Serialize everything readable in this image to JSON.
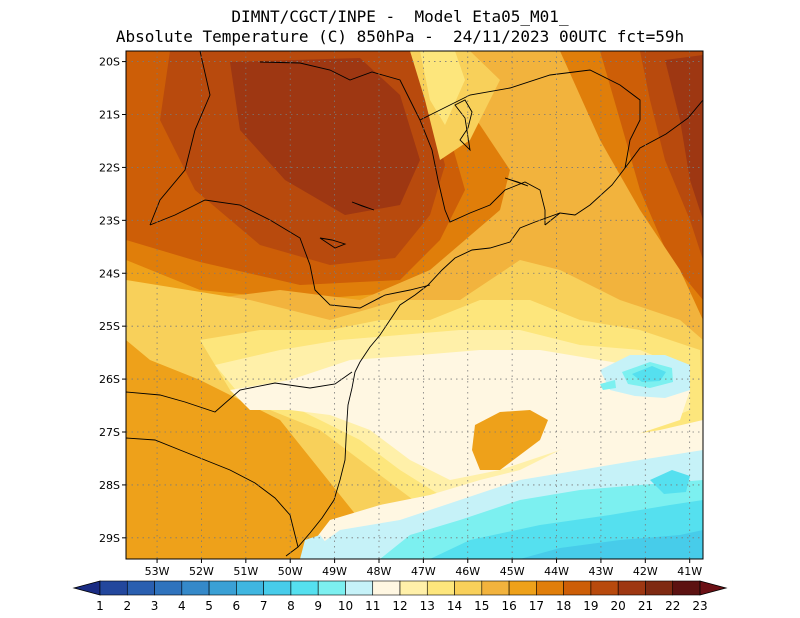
{
  "title": {
    "line1": "DIMNT/CGCT/INPE -  Model Eta05_M01_",
    "line2": "Absolute Temperature (C) 850hPa -  24/11/2023 00UTC fct=59h"
  },
  "map": {
    "variable": "Absolute Temperature",
    "units": "C",
    "level": "850hPa",
    "lon_range": [
      -53.7,
      -40.7
    ],
    "lat_range": [
      -29.4,
      -19.8
    ],
    "lat_labels": [
      "20S",
      "21S",
      "22S",
      "23S",
      "24S",
      "25S",
      "26S",
      "27S",
      "28S",
      "29S"
    ],
    "lon_labels": [
      "53W",
      "52W",
      "51W",
      "50W",
      "49W",
      "48W",
      "47W",
      "46W",
      "45W",
      "44W",
      "43W",
      "42W",
      "41W"
    ]
  },
  "colorbar": {
    "labels": [
      "1",
      "2",
      "3",
      "4",
      "5",
      "6",
      "7",
      "8",
      "9",
      "10",
      "11",
      "12",
      "13",
      "14",
      "15",
      "16",
      "17",
      "18",
      "19",
      "20",
      "21",
      "22",
      "23"
    ],
    "colors": [
      "#1a2c83",
      "#23479d",
      "#2a5fb0",
      "#2f73bd",
      "#3589c9",
      "#3aa0d5",
      "#3fb6e0",
      "#47ccea",
      "#55e0ef",
      "#7cf0f0",
      "#c6f2f8",
      "#fff7e2",
      "#fff0a9",
      "#fde67c",
      "#f8d05a",
      "#f2b33d",
      "#eea11a",
      "#e07e0a",
      "#cd5e07",
      "#b84a0d",
      "#9e3712",
      "#7f2a12",
      "#5c1211",
      "#46060f"
    ],
    "under_color": "#1a2c83",
    "over_color": "#6b1015"
  }
}
